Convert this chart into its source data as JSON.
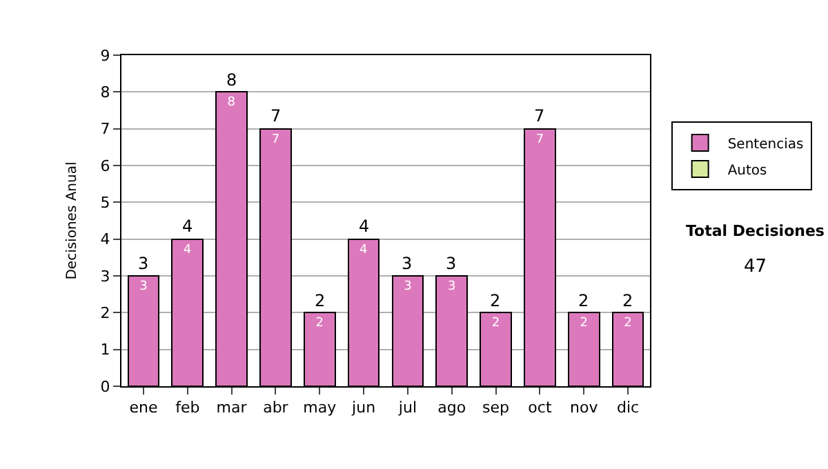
{
  "chart_data": {
    "type": "bar",
    "ylabel": "Decisiones Anual",
    "stacked": true,
    "categories": [
      "ene",
      "feb",
      "mar",
      "abr",
      "may",
      "jun",
      "jul",
      "ago",
      "sep",
      "oct",
      "nov",
      "dic"
    ],
    "series": [
      {
        "name": "Sentencias",
        "color": "#dc79bc",
        "values": [
          3,
          4,
          8,
          7,
          2,
          4,
          3,
          3,
          2,
          7,
          2,
          2
        ],
        "value_labels": [
          "3",
          "4",
          "8",
          "7",
          "2",
          "4",
          "3",
          "3",
          "2",
          "7",
          "2",
          "2"
        ]
      },
      {
        "name": "Autos",
        "color": "#d6eb9f",
        "values": [
          null,
          null,
          null,
          null,
          null,
          null,
          null,
          null,
          null,
          null,
          null,
          null
        ]
      }
    ],
    "totals": [
      "3",
      "4",
      "8",
      "7",
      "2",
      "4",
      "3",
      "3",
      "2",
      "7",
      "2",
      "2"
    ],
    "ylim": [
      0,
      9
    ],
    "yticks": [
      0,
      1,
      2,
      3,
      4,
      5,
      6,
      7,
      8,
      9
    ],
    "grid": "y",
    "legend": "right",
    "annotations": [
      "Total Decisiones",
      "47"
    ]
  }
}
